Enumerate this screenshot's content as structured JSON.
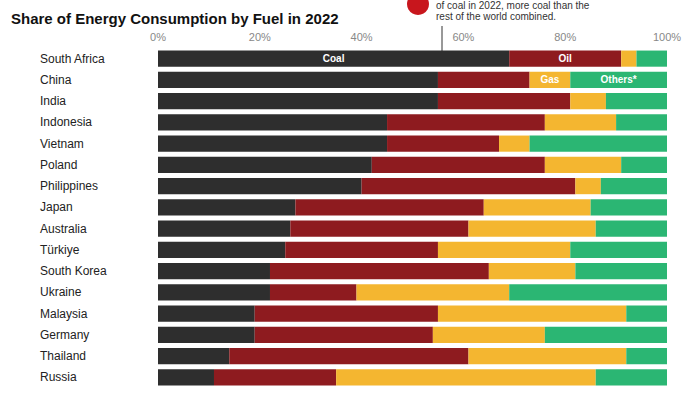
{
  "chart_data": {
    "type": "bar",
    "title": "Share of Energy Consumption by Fuel in 2022",
    "orientation": "horizontal",
    "stacked": true,
    "grid": false,
    "categories": [
      "South Africa",
      "China",
      "India",
      "Indonesia",
      "Vietnam",
      "Poland",
      "Philippines",
      "Japan",
      "Australia",
      "Türkiye",
      "South Korea",
      "Ukraine",
      "Malaysia",
      "Germany",
      "Thailand",
      "Russia"
    ],
    "series": [
      {
        "name": "Coal",
        "color": "#2e2e2e",
        "values": [
          69,
          55,
          55,
          45,
          45,
          42,
          40,
          27,
          26,
          25,
          22,
          22,
          19,
          19,
          14,
          11
        ]
      },
      {
        "name": "Oil",
        "color": "#8e1b1f",
        "values": [
          22,
          18,
          26,
          31,
          22,
          34,
          42,
          37,
          35,
          30,
          43,
          17,
          36,
          35,
          47,
          24
        ]
      },
      {
        "name": "Gas",
        "color": "#f4b630",
        "values": [
          3,
          8,
          7,
          14,
          6,
          15,
          5,
          21,
          25,
          26,
          17,
          30,
          37,
          22,
          31,
          51
        ]
      },
      {
        "name": "Others*",
        "color": "#2bb673",
        "values": [
          6,
          19,
          12,
          10,
          27,
          9,
          13,
          15,
          14,
          19,
          18,
          31,
          8,
          24,
          8,
          14
        ]
      }
    ],
    "xlim": [
      0,
      100
    ],
    "xticks": [
      {
        "value": 0,
        "label": "0%"
      },
      {
        "value": 20,
        "label": "20%"
      },
      {
        "value": 40,
        "label": "40%"
      },
      {
        "value": 60,
        "label": "60%"
      },
      {
        "value": 80,
        "label": "80%"
      },
      {
        "value": 100,
        "label": "100%"
      }
    ],
    "annotations": [
      {
        "text": "Coal",
        "category": "South Africa",
        "series": "Coal"
      },
      {
        "text": "Oil",
        "category": "South Africa",
        "series": "Oil"
      },
      {
        "text": "Gas",
        "category": "China",
        "series": "Gas"
      },
      {
        "text": "Others*",
        "category": "China",
        "series": "Others*"
      },
      {
        "text": "of coal in 2022, more coal than the\nrest of the world combined."
      }
    ]
  }
}
